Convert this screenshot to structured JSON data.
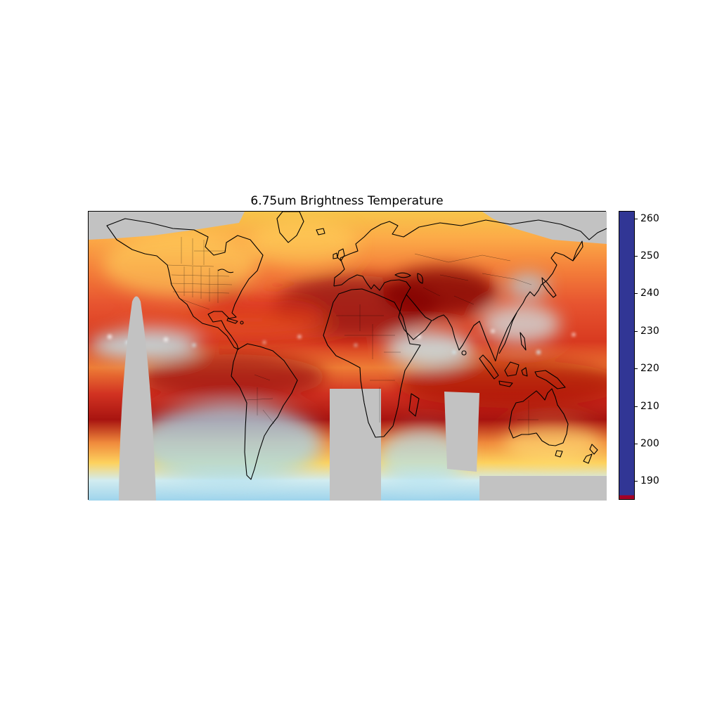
{
  "chart_data": {
    "type": "heatmap",
    "title": "6.75um Brightness Temperature",
    "projection": "equirectangular world map with coastline and border overlays",
    "colorbar": {
      "orientation": "vertical",
      "position": "right",
      "tick_labels": [
        "260",
        "250",
        "240",
        "230",
        "220",
        "210",
        "200",
        "190"
      ],
      "value_min": 185,
      "value_max": 262,
      "colormap_stops": [
        {
          "value": 186,
          "color": "#313695"
        },
        {
          "value": 196,
          "color": "#4575b4"
        },
        {
          "value": 206,
          "color": "#74add1"
        },
        {
          "value": 214,
          "color": "#abd9e9"
        },
        {
          "value": 220,
          "color": "#e0f3f8"
        },
        {
          "value": 224,
          "color": "#ffffbf"
        },
        {
          "value": 232,
          "color": "#fee090"
        },
        {
          "value": 239,
          "color": "#fdae61"
        },
        {
          "value": 247,
          "color": "#f46d43"
        },
        {
          "value": 254,
          "color": "#d73027"
        },
        {
          "value": 262,
          "color": "#a50026"
        }
      ]
    },
    "missing_data_color": "#c2c2c2",
    "axes": {
      "x_tick_labels": [],
      "y_tick_labels": [],
      "frame": true
    },
    "overlays": [
      "coastlines",
      "country-borders",
      "us-state-borders"
    ],
    "notable_features": [
      {
        "region": "North Africa / Arabian Peninsula / Central Asia",
        "approx_value": 255
      },
      {
        "region": "Subtropical South Atlantic - South America band",
        "approx_value": 252
      },
      {
        "region": "South Indian Ocean / Australia band",
        "approx_value": 250
      },
      {
        "region": "Equatorial convective cloud clusters (Pacific, Indian Ocean)",
        "approx_value": 210
      },
      {
        "region": "Southern mid-latitude oceans (45-60S)",
        "approx_value": 220
      },
      {
        "region": "Storm cloud tops east of Japan",
        "approx_value": 218
      },
      {
        "region": "Polar latitudes and inter-satellite gaps",
        "approx_value": "no data"
      }
    ]
  }
}
